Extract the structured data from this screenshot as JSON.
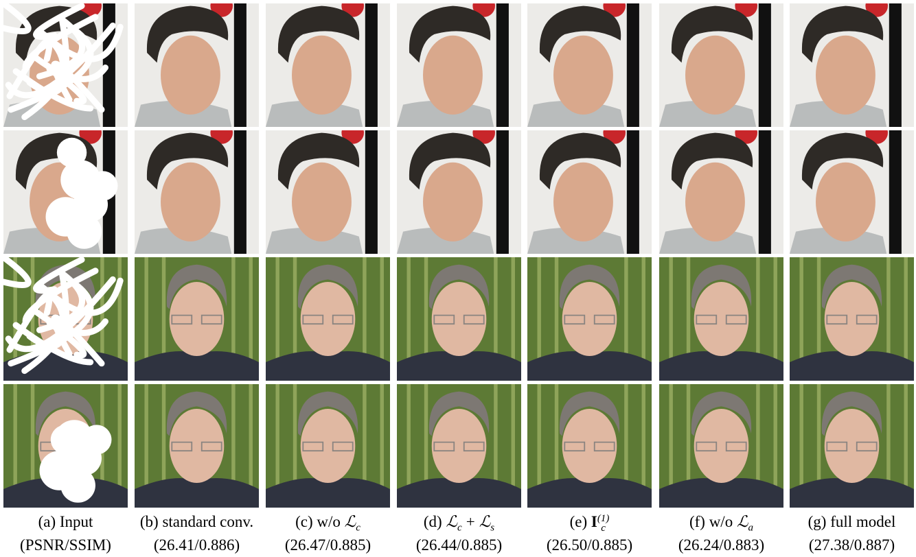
{
  "figure": {
    "columns": [
      {
        "caption": {
          "text": "(a) Input"
        },
        "metrics": "(PSNR/SSIM)"
      },
      {
        "caption": {
          "text": "(b) standard conv."
        },
        "metrics": "(26.41/0.886)"
      },
      {
        "caption": {
          "text": "(c) w/o",
          "math": [
            {
              "symbol": "ℒ",
              "sub": "c"
            }
          ]
        },
        "metrics": "(26.47/0.885)"
      },
      {
        "caption": {
          "text": "(d)",
          "math": [
            {
              "symbol": "ℒ",
              "sub": "c"
            },
            {
              "op": "+"
            },
            {
              "symbol": "ℒ",
              "sub": "s"
            }
          ]
        },
        "metrics": "(26.44/0.885)"
      },
      {
        "caption": {
          "text": "(e)",
          "math": [
            {
              "symbol": "I",
              "sub": "c",
              "sup": "(1)"
            }
          ]
        },
        "metrics": "(26.50/0.885)"
      },
      {
        "caption": {
          "text": "(f) w/o",
          "math": [
            {
              "symbol": "ℒ",
              "sub": "a"
            }
          ]
        },
        "metrics": "(26.24/0.883)"
      },
      {
        "caption": {
          "text": "(g) full model"
        },
        "metrics": "(27.38/0.887)"
      }
    ]
  }
}
